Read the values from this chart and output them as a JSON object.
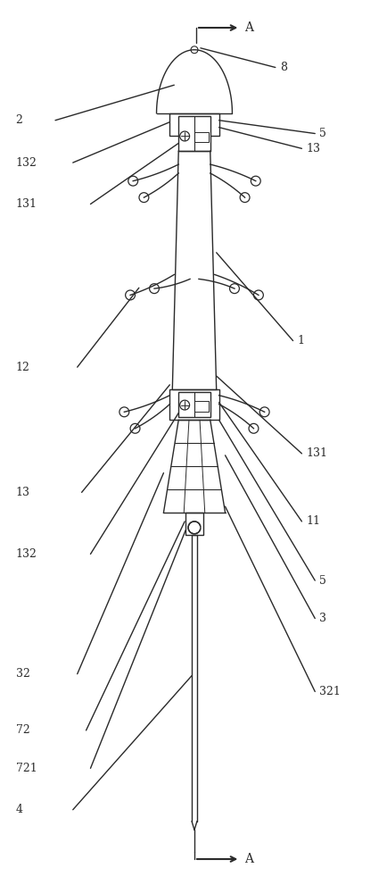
{
  "bg_color": "#ffffff",
  "line_color": "#2a2a2a",
  "figsize": [
    4.35,
    10.0
  ],
  "dpi": 100
}
